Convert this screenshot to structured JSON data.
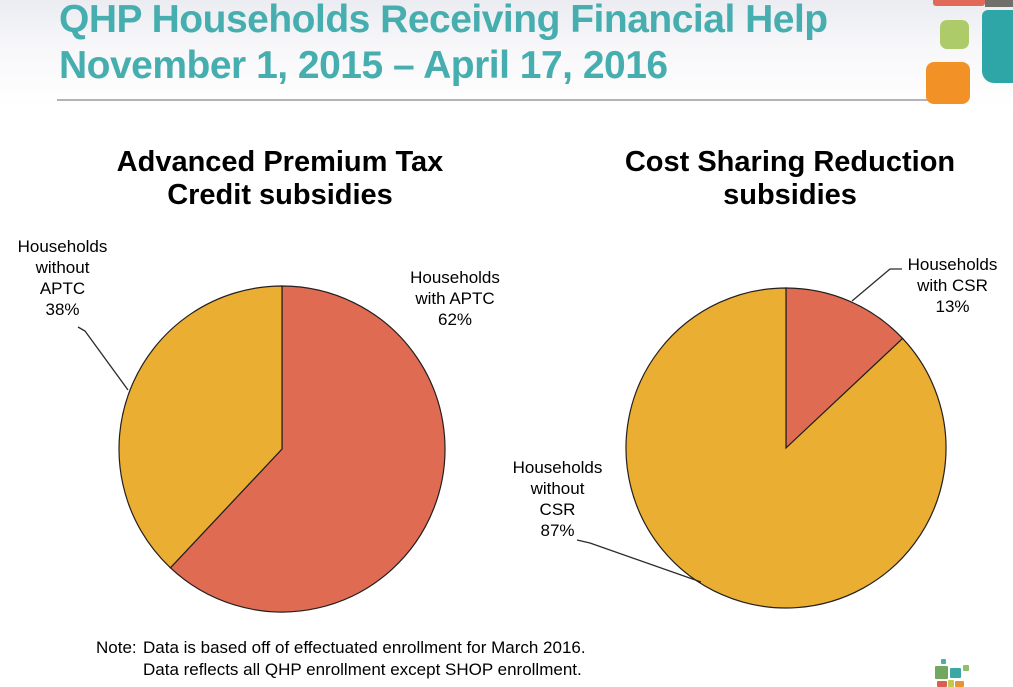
{
  "header": {
    "title_line1": "QHP Households Receiving Financial Help",
    "title_line2": "November 1, 2015 – April 17, 2016"
  },
  "chart_titles": [
    {
      "line1": "Advanced Premium Tax",
      "line2": "Credit subsidies"
    },
    {
      "line1": "Cost Sharing Reduction",
      "line2": "subsidies"
    }
  ],
  "chart_data": [
    {
      "type": "pie",
      "title": "Advanced Premium Tax Credit subsidies",
      "categories": [
        "Households with APTC",
        "Households without APTC"
      ],
      "values": [
        62,
        38
      ],
      "unit": "%",
      "colors": [
        "#df6c52",
        "#eaae32"
      ],
      "start_angle": "12 o'clock",
      "direction": "clockwise",
      "legend": "none - direct callout labels with leader lines"
    },
    {
      "type": "pie",
      "title": "Cost Sharing Reduction subsidies",
      "categories": [
        "Households with CSR",
        "Households without CSR"
      ],
      "values": [
        13,
        87
      ],
      "unit": "%",
      "colors": [
        "#df6c52",
        "#eaae32"
      ],
      "start_angle": "12 o'clock",
      "direction": "clockwise",
      "legend": "none - direct callout labels with leader lines"
    }
  ],
  "callouts": {
    "aptc_without": {
      "lines": [
        "Households",
        "without",
        "APTC",
        "38%"
      ]
    },
    "aptc_with": {
      "lines": [
        "Households",
        "with APTC",
        "62%"
      ]
    },
    "csr_with": {
      "lines": [
        "Households",
        "with CSR",
        "13%"
      ]
    },
    "csr_without": {
      "lines": [
        "Households",
        "without",
        "CSR",
        "87%"
      ]
    }
  },
  "note": {
    "label": "Note:",
    "lines": [
      "Data is based off of effectuated enrollment for March 2016.",
      "Data reflects all QHP enrollment except SHOP enrollment."
    ]
  },
  "colors": {
    "title_teal": "#47aeaf",
    "pie_red": "#df6c52",
    "pie_yellow": "#eaae32",
    "pie_outline": "#231f20",
    "divider_gray": "#b4b4b8",
    "deco_red": "#e0695a",
    "deco_dark_gray": "#70706a",
    "deco_teal": "#2ea6a8",
    "deco_green": "#aecb69",
    "deco_orange": "#f19126"
  }
}
